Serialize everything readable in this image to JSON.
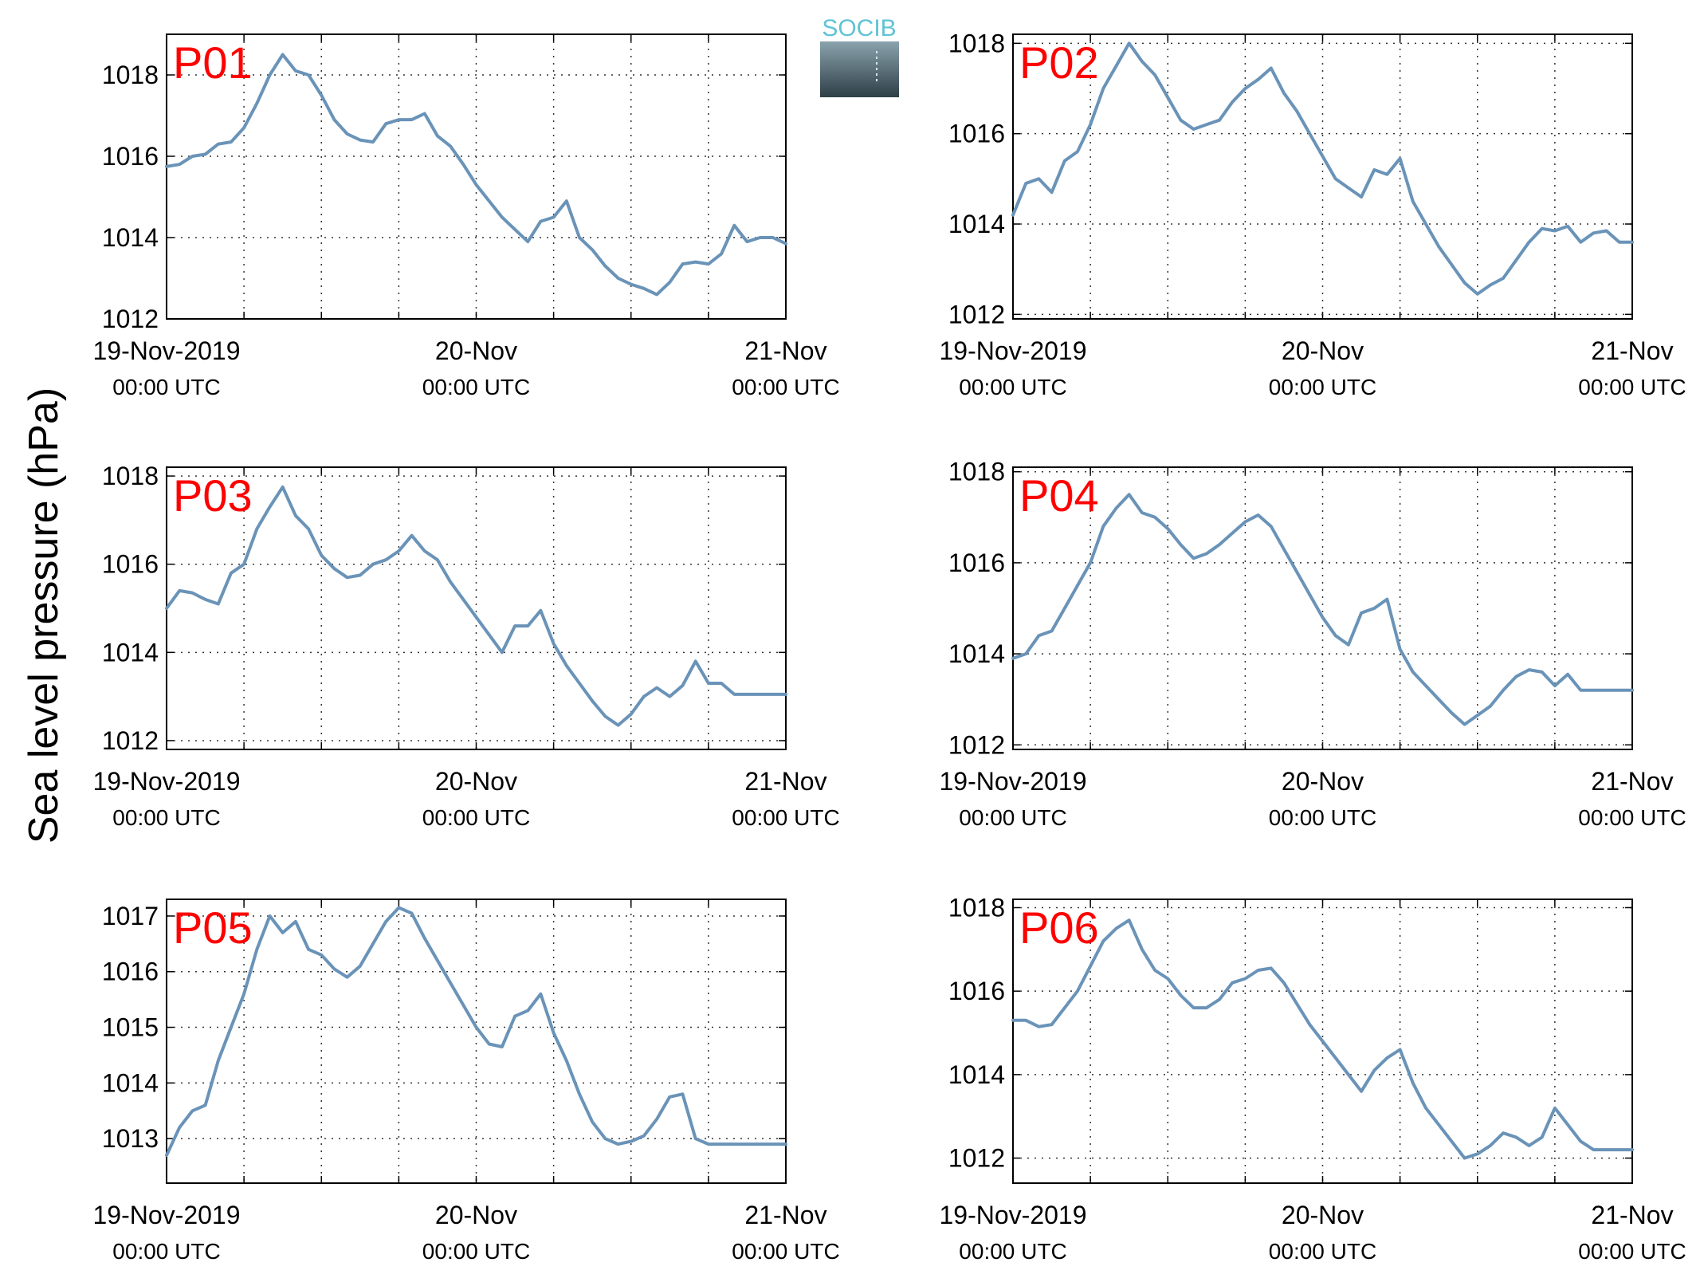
{
  "figure": {
    "ylabel": "Sea level pressure (hPa)",
    "logo_text": "SOCIB",
    "line_color": "#6a93b8",
    "label_color": "#ff0000"
  },
  "chart_data": [
    {
      "type": "line",
      "label": "P01",
      "ylim": [
        1012,
        1019
      ],
      "yticks": [
        1012,
        1014,
        1016,
        1018
      ],
      "x_ticks": [
        {
          "main": "19-Nov-2019",
          "sub": "00:00 UTC"
        },
        {
          "main": "20-Nov",
          "sub": "00:00 UTC"
        },
        {
          "main": "21-Nov",
          "sub": "00:00 UTC"
        }
      ],
      "x_hours": [
        0,
        1,
        2,
        3,
        4,
        5,
        6,
        7,
        8,
        9,
        10,
        11,
        12,
        13,
        14,
        15,
        16,
        17,
        18,
        19,
        20,
        21,
        22,
        23,
        24,
        25,
        26,
        27,
        28,
        29,
        30,
        31,
        32,
        33,
        34,
        35,
        36,
        37,
        38,
        39,
        40,
        41,
        42,
        43,
        44,
        45,
        46,
        47,
        48
      ],
      "values": [
        1015.75,
        1015.8,
        1016.0,
        1016.05,
        1016.3,
        1016.35,
        1016.7,
        1017.3,
        1018.0,
        1018.5,
        1018.1,
        1018.0,
        1017.5,
        1016.9,
        1016.55,
        1016.4,
        1016.35,
        1016.8,
        1016.9,
        1016.9,
        1017.05,
        1016.5,
        1016.25,
        1015.8,
        1015.3,
        1014.9,
        1014.5,
        1014.2,
        1013.9,
        1014.4,
        1014.5,
        1014.9,
        1014.0,
        1013.7,
        1013.3,
        1013.0,
        1012.85,
        1012.75,
        1012.6,
        1012.9,
        1013.35,
        1013.4,
        1013.35,
        1013.6,
        1014.3,
        1013.9,
        1014.0,
        1014.0,
        1013.85
      ]
    },
    {
      "type": "line",
      "label": "P02",
      "ylim": [
        1011.9,
        1018.2
      ],
      "yticks": [
        1012,
        1014,
        1016,
        1018
      ],
      "x_ticks": [
        {
          "main": "19-Nov-2019",
          "sub": "00:00 UTC"
        },
        {
          "main": "20-Nov",
          "sub": "00:00 UTC"
        },
        {
          "main": "21-Nov",
          "sub": "00:00 UTC"
        }
      ],
      "x_hours": [
        0,
        1,
        2,
        3,
        4,
        5,
        6,
        7,
        8,
        9,
        10,
        11,
        12,
        13,
        14,
        15,
        16,
        17,
        18,
        19,
        20,
        21,
        22,
        23,
        24,
        25,
        26,
        27,
        28,
        29,
        30,
        31,
        32,
        33,
        34,
        35,
        36,
        37,
        38,
        39,
        40,
        41,
        42,
        43,
        44,
        45,
        46,
        47,
        48
      ],
      "values": [
        1014.2,
        1014.9,
        1015.0,
        1014.7,
        1015.4,
        1015.6,
        1016.2,
        1017.0,
        1017.5,
        1018.0,
        1017.6,
        1017.3,
        1016.8,
        1016.3,
        1016.1,
        1016.2,
        1016.3,
        1016.7,
        1017.0,
        1017.2,
        1017.45,
        1016.9,
        1016.5,
        1016.0,
        1015.5,
        1015.0,
        1014.8,
        1014.6,
        1015.2,
        1015.1,
        1015.45,
        1014.5,
        1014.0,
        1013.5,
        1013.1,
        1012.7,
        1012.45,
        1012.65,
        1012.8,
        1013.2,
        1013.6,
        1013.9,
        1013.85,
        1013.95,
        1013.6,
        1013.8,
        1013.85,
        1013.6,
        1013.6
      ]
    },
    {
      "type": "line",
      "label": "P03",
      "ylim": [
        1011.8,
        1018.2
      ],
      "yticks": [
        1012,
        1014,
        1016,
        1018
      ],
      "x_ticks": [
        {
          "main": "19-Nov-2019",
          "sub": "00:00 UTC"
        },
        {
          "main": "20-Nov",
          "sub": "00:00 UTC"
        },
        {
          "main": "21-Nov",
          "sub": "00:00 UTC"
        }
      ],
      "x_hours": [
        0,
        1,
        2,
        3,
        4,
        5,
        6,
        7,
        8,
        9,
        10,
        11,
        12,
        13,
        14,
        15,
        16,
        17,
        18,
        19,
        20,
        21,
        22,
        23,
        24,
        25,
        26,
        27,
        28,
        29,
        30,
        31,
        32,
        33,
        34,
        35,
        36,
        37,
        38,
        39,
        40,
        41,
        42,
        43,
        44,
        45,
        46,
        47,
        48
      ],
      "values": [
        1015.0,
        1015.4,
        1015.35,
        1015.2,
        1015.1,
        1015.8,
        1016.0,
        1016.8,
        1017.3,
        1017.75,
        1017.1,
        1016.8,
        1016.2,
        1015.9,
        1015.7,
        1015.75,
        1016.0,
        1016.1,
        1016.3,
        1016.65,
        1016.3,
        1016.1,
        1015.6,
        1015.2,
        1014.8,
        1014.4,
        1014.0,
        1014.6,
        1014.6,
        1014.95,
        1014.2,
        1013.7,
        1013.3,
        1012.9,
        1012.55,
        1012.35,
        1012.6,
        1013.0,
        1013.2,
        1013.0,
        1013.25,
        1013.8,
        1013.3,
        1013.3,
        1013.05,
        1013.05,
        1013.05,
        1013.05,
        1013.05
      ]
    },
    {
      "type": "line",
      "label": "P04",
      "ylim": [
        1011.9,
        1018.1
      ],
      "yticks": [
        1012,
        1014,
        1016,
        1018
      ],
      "x_ticks": [
        {
          "main": "19-Nov-2019",
          "sub": "00:00 UTC"
        },
        {
          "main": "20-Nov",
          "sub": "00:00 UTC"
        },
        {
          "main": "21-Nov",
          "sub": "00:00 UTC"
        }
      ],
      "x_hours": [
        0,
        1,
        2,
        3,
        4,
        5,
        6,
        7,
        8,
        9,
        10,
        11,
        12,
        13,
        14,
        15,
        16,
        17,
        18,
        19,
        20,
        21,
        22,
        23,
        24,
        25,
        26,
        27,
        28,
        29,
        30,
        31,
        32,
        33,
        34,
        35,
        36,
        37,
        38,
        39,
        40,
        41,
        42,
        43,
        44,
        45,
        46,
        47,
        48
      ],
      "values": [
        1013.9,
        1014.0,
        1014.4,
        1014.5,
        1015.0,
        1015.5,
        1016.0,
        1016.8,
        1017.2,
        1017.5,
        1017.1,
        1017.0,
        1016.75,
        1016.4,
        1016.1,
        1016.2,
        1016.4,
        1016.65,
        1016.9,
        1017.05,
        1016.8,
        1016.3,
        1015.8,
        1015.3,
        1014.8,
        1014.4,
        1014.2,
        1014.9,
        1015.0,
        1015.2,
        1014.1,
        1013.6,
        1013.3,
        1013.0,
        1012.7,
        1012.45,
        1012.65,
        1012.85,
        1013.2,
        1013.5,
        1013.65,
        1013.6,
        1013.3,
        1013.55,
        1013.2,
        1013.2,
        1013.2,
        1013.2,
        1013.2
      ]
    },
    {
      "type": "line",
      "label": "P05",
      "ylim": [
        1012.2,
        1017.3
      ],
      "yticks": [
        1013,
        1014,
        1015,
        1016,
        1017
      ],
      "x_ticks": [
        {
          "main": "19-Nov-2019",
          "sub": "00:00 UTC"
        },
        {
          "main": "20-Nov",
          "sub": "00:00 UTC"
        },
        {
          "main": "21-Nov",
          "sub": "00:00 UTC"
        }
      ],
      "x_hours": [
        0,
        1,
        2,
        3,
        4,
        5,
        6,
        7,
        8,
        9,
        10,
        11,
        12,
        13,
        14,
        15,
        16,
        17,
        18,
        19,
        20,
        21,
        22,
        23,
        24,
        25,
        26,
        27,
        28,
        29,
        30,
        31,
        32,
        33,
        34,
        35,
        36,
        37,
        38,
        39,
        40,
        41,
        42,
        43,
        44,
        45,
        46,
        47,
        48
      ],
      "values": [
        1012.7,
        1013.2,
        1013.5,
        1013.6,
        1014.4,
        1015.0,
        1015.6,
        1016.4,
        1017.0,
        1016.7,
        1016.9,
        1016.4,
        1016.3,
        1016.05,
        1015.9,
        1016.1,
        1016.5,
        1016.9,
        1017.15,
        1017.05,
        1016.6,
        1016.2,
        1015.8,
        1015.4,
        1015.0,
        1014.7,
        1014.65,
        1015.2,
        1015.3,
        1015.6,
        1014.9,
        1014.4,
        1013.8,
        1013.3,
        1013.0,
        1012.9,
        1012.95,
        1013.05,
        1013.35,
        1013.75,
        1013.8,
        1013.0,
        1012.9,
        1012.9,
        1012.9,
        1012.9,
        1012.9,
        1012.9,
        1012.9
      ]
    },
    {
      "type": "line",
      "label": "P06",
      "ylim": [
        1011.4,
        1018.2
      ],
      "yticks": [
        1012,
        1014,
        1016,
        1018
      ],
      "x_ticks": [
        {
          "main": "19-Nov-2019",
          "sub": "00:00 UTC"
        },
        {
          "main": "20-Nov",
          "sub": "00:00 UTC"
        },
        {
          "main": "21-Nov",
          "sub": "00:00 UTC"
        }
      ],
      "x_hours": [
        0,
        1,
        2,
        3,
        4,
        5,
        6,
        7,
        8,
        9,
        10,
        11,
        12,
        13,
        14,
        15,
        16,
        17,
        18,
        19,
        20,
        21,
        22,
        23,
        24,
        25,
        26,
        27,
        28,
        29,
        30,
        31,
        32,
        33,
        34,
        35,
        36,
        37,
        38,
        39,
        40,
        41,
        42,
        43,
        44,
        45,
        46,
        47,
        48
      ],
      "values": [
        1015.3,
        1015.3,
        1015.15,
        1015.2,
        1015.6,
        1016.0,
        1016.6,
        1017.2,
        1017.5,
        1017.7,
        1017.0,
        1016.5,
        1016.3,
        1015.9,
        1015.6,
        1015.6,
        1015.8,
        1016.2,
        1016.3,
        1016.5,
        1016.55,
        1016.2,
        1015.7,
        1015.2,
        1014.8,
        1014.4,
        1014.0,
        1013.6,
        1014.1,
        1014.4,
        1014.6,
        1013.8,
        1013.2,
        1012.8,
        1012.4,
        1012.0,
        1012.1,
        1012.3,
        1012.6,
        1012.5,
        1012.3,
        1012.5,
        1013.2,
        1012.8,
        1012.4,
        1012.2,
        1012.2,
        1012.2,
        1012.2
      ]
    }
  ]
}
